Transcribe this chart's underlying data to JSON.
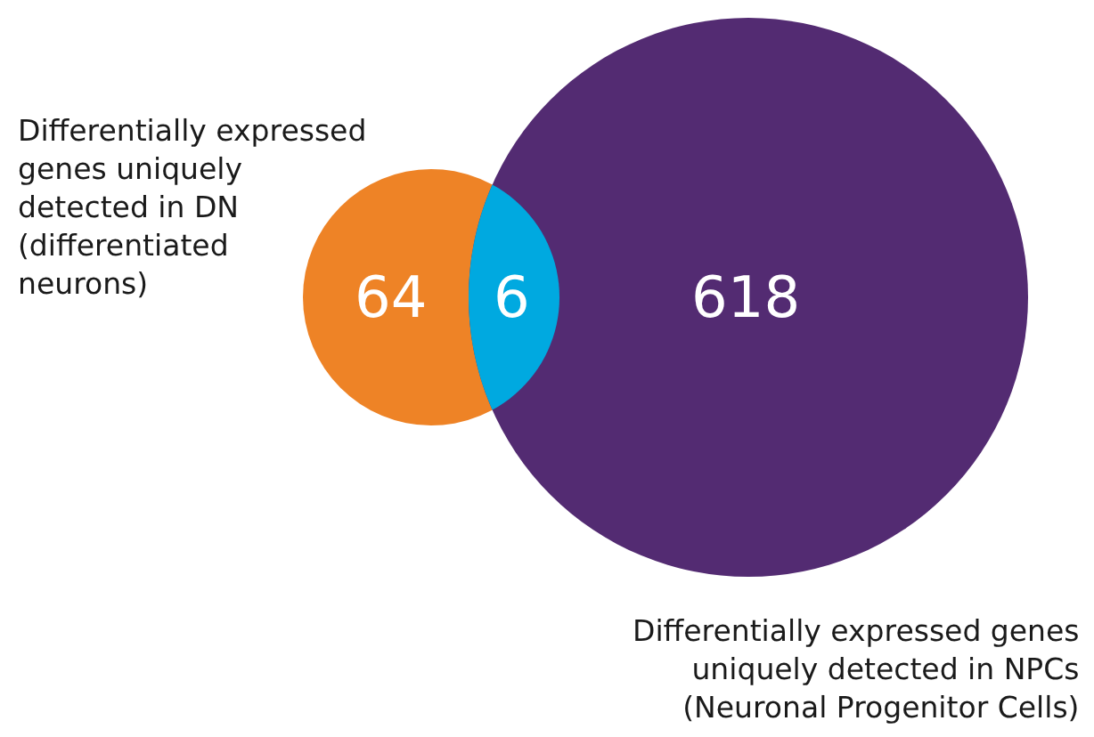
{
  "chart_data": {
    "type": "other",
    "categories": [
      "Differentially expressed\ngenes uniquely\ndetected in DN\n(differentiated\nneurons)",
      null,
      "Differentially expressed genes\nuniquely detected in NPCs\n(Neuronal Progenitor Cells)"
    ],
    "values": [
      64,
      6,
      618
    ],
    "data_labels": true,
    "colors": [
      "#ee8326",
      "#00a9e0",
      "#532b72"
    ]
  }
}
